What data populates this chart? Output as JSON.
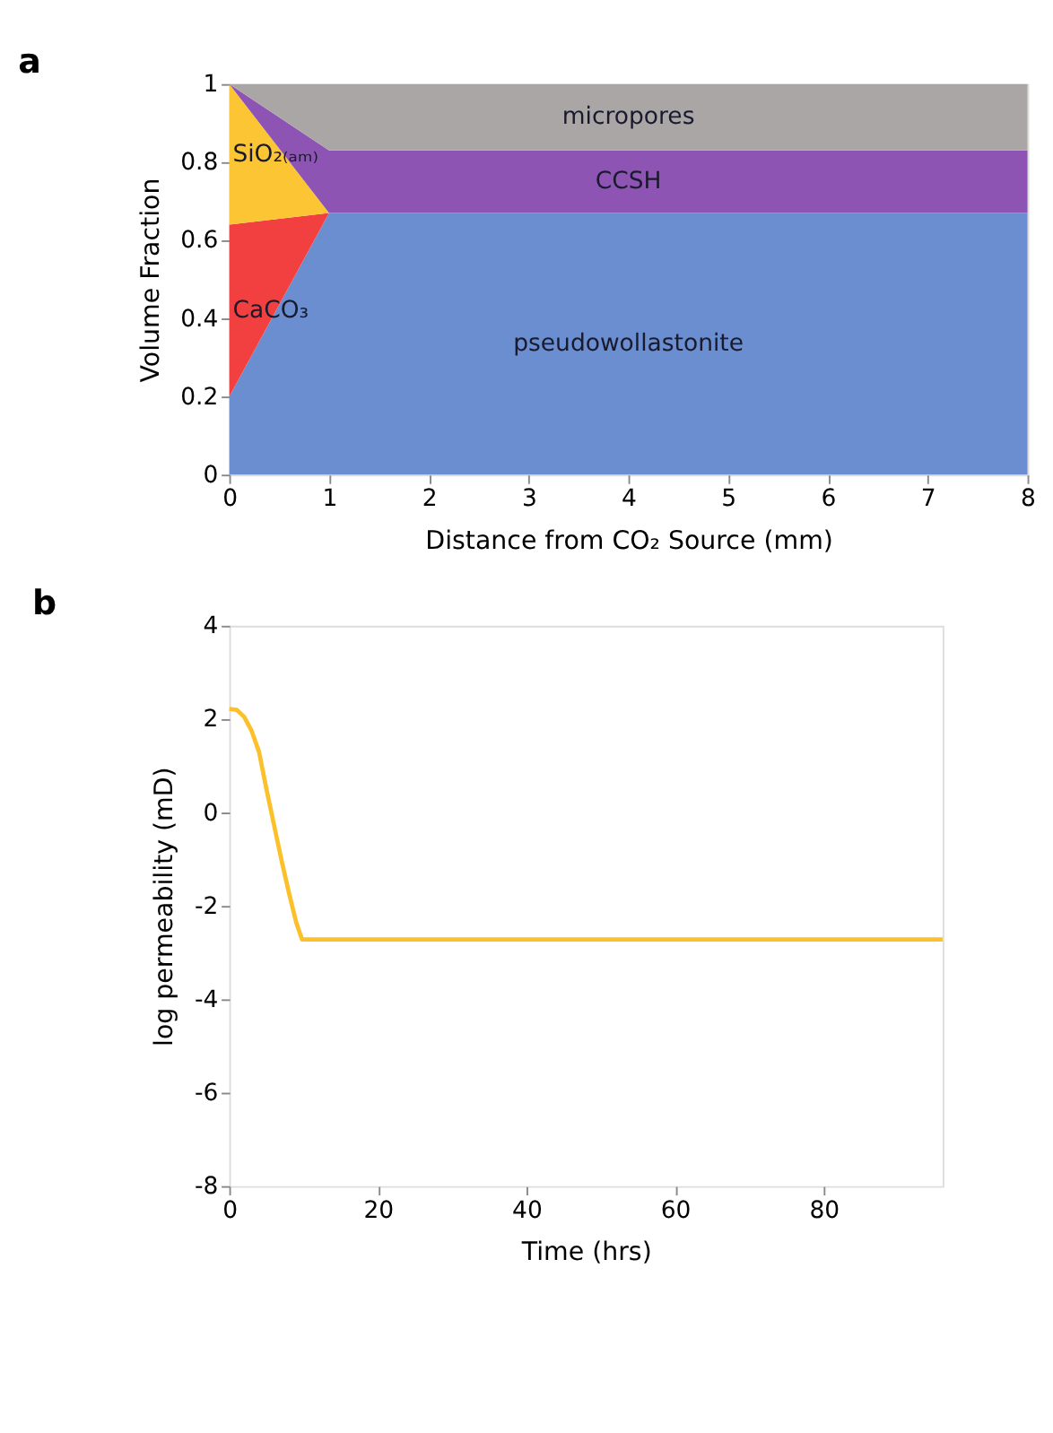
{
  "chart_data": [
    {
      "type": "area",
      "title": "a",
      "stacked": true,
      "xlabel": "Distance from CO₂ Source (mm)",
      "ylabel": "Volume Fraction",
      "x": [
        0,
        1,
        8
      ],
      "xlim": [
        0,
        8
      ],
      "xticks": [
        0,
        1,
        2,
        3,
        4,
        5,
        6,
        7,
        8
      ],
      "ylim": [
        0,
        1
      ],
      "yticks": [
        0,
        0.2,
        0.4,
        0.6,
        0.8,
        1
      ],
      "grid": false,
      "legend": false,
      "series": [
        {
          "name": "pseudowollastonite",
          "color": "#6a8ed0",
          "values": [
            0.2,
            0.67,
            0.67
          ]
        },
        {
          "name": "CaCO₃",
          "color": "#f24040",
          "values": [
            0.44,
            0,
            0
          ]
        },
        {
          "name": "SiO₂₍ₐₘ₎",
          "color": "#fbc534",
          "values": [
            0.36,
            0,
            0
          ]
        },
        {
          "name": "CCSH",
          "color": "#8e54b4",
          "values": [
            0,
            0.16,
            0.16
          ]
        },
        {
          "name": "micropores",
          "color": "#aaa6a6",
          "values": [
            0,
            0.17,
            0.17
          ]
        }
      ]
    },
    {
      "type": "line",
      "title": "b",
      "xlabel": "Time (hrs)",
      "ylabel": "log permeability (mD)",
      "x": [
        0,
        1,
        2,
        3,
        4,
        5,
        6,
        7,
        8,
        9,
        9.8,
        11,
        96
      ],
      "xlim": [
        0,
        96
      ],
      "xticks": [
        0,
        20,
        40,
        60,
        80
      ],
      "ylim": [
        -8,
        4
      ],
      "yticks": [
        -8,
        -6,
        -4,
        -2,
        0,
        2,
        4
      ],
      "grid": false,
      "legend": false,
      "marker": "none",
      "line_style": "solid",
      "series": [
        {
          "color": "#fbc02a",
          "values": [
            2.22,
            2.2,
            2.05,
            1.75,
            1.3,
            0.5,
            -0.25,
            -1.0,
            -1.7,
            -2.35,
            -2.72,
            -2.72,
            -2.72
          ]
        }
      ]
    }
  ]
}
